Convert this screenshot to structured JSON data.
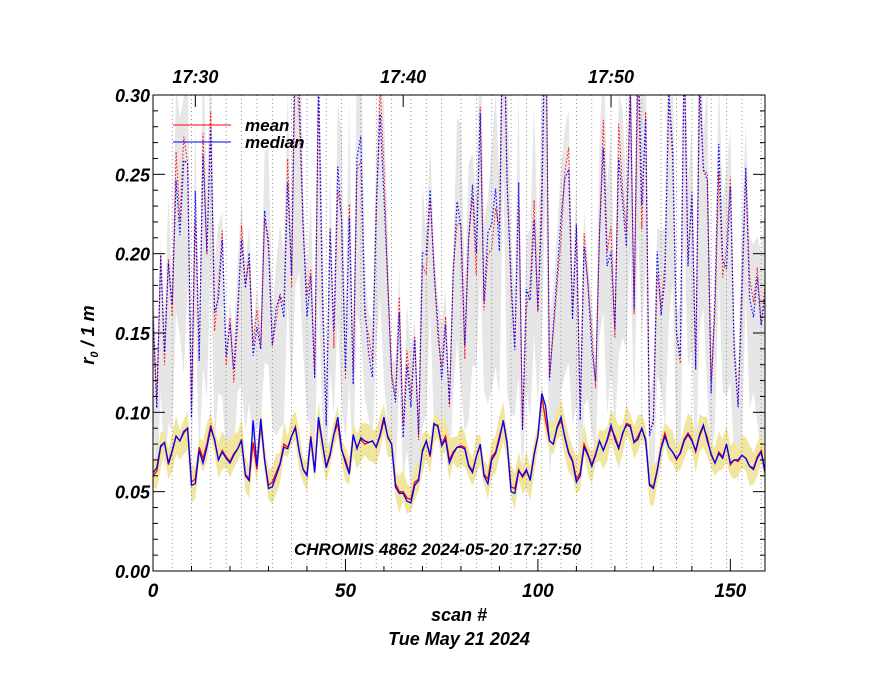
{
  "chart_data": {
    "type": "line",
    "title": "",
    "annotation": "CHROMIS 4862 2024-05-20 17:27:50",
    "xlabel": "scan #",
    "date_label": "Tue May 21 2024",
    "ylabel_main": "r",
    "ylabel_sub": "0",
    "ylabel_rest": " / 1 m",
    "xlim": [
      0,
      159
    ],
    "ylim": [
      0.0,
      0.3
    ],
    "x_ticks": [
      0,
      50,
      100,
      150
    ],
    "x_tick_labels": [
      "0",
      "50",
      "100",
      "150"
    ],
    "y_ticks": [
      0.0,
      0.05,
      0.1,
      0.15,
      0.2,
      0.25,
      0.3
    ],
    "y_tick_labels": [
      "0.00",
      "0.05",
      "0.10",
      "0.15",
      "0.20",
      "0.25",
      "0.30"
    ],
    "time_ticks": [
      {
        "x": 11,
        "label": "17:30"
      },
      {
        "x": 65,
        "label": "17:40"
      },
      {
        "x": 119,
        "label": "17:50"
      }
    ],
    "scan_markers": [
      5,
      10,
      15,
      19,
      23,
      27,
      31,
      36,
      40,
      45,
      49,
      54,
      58,
      62,
      67,
      71,
      75,
      80,
      84,
      88,
      93,
      97,
      101,
      106,
      110,
      114,
      119,
      123,
      127,
      132,
      136,
      140,
      145,
      149,
      153,
      158
    ],
    "legend": [
      {
        "label": "mean",
        "color": "#ff0000"
      },
      {
        "label": "median",
        "color": "#0000ff"
      }
    ],
    "colors": {
      "mean": "#ff0000",
      "median": "#0000ff",
      "band": "#f0e6a0",
      "top_band": "#e6e6e6"
    },
    "series": [
      {
        "name": "mean",
        "color": "#ff0000",
        "values": [
          0.06,
          0.063,
          0.078,
          0.081,
          0.067,
          0.075,
          0.085,
          0.082,
          0.087,
          0.09,
          0.056,
          0.058,
          0.078,
          0.071,
          0.08,
          0.092,
          0.082,
          0.07,
          0.076,
          0.072,
          0.069,
          0.074,
          0.077,
          0.083,
          0.061,
          0.058,
          0.081,
          0.064,
          0.093,
          0.07,
          0.054,
          0.056,
          0.062,
          0.068,
          0.08,
          0.078,
          0.085,
          0.091,
          0.075,
          0.064,
          0.061,
          0.085,
          0.063,
          0.095,
          0.08,
          0.066,
          0.074,
          0.086,
          0.093,
          0.076,
          0.07,
          0.062,
          0.085,
          0.078,
          0.083,
          0.08,
          0.081,
          0.082,
          0.078,
          0.085,
          0.095,
          0.085,
          0.08,
          0.055,
          0.05,
          0.05,
          0.046,
          0.045,
          0.056,
          0.058,
          0.075,
          0.082,
          0.072,
          0.092,
          0.092,
          0.08,
          0.085,
          0.07,
          0.075,
          0.078,
          0.079,
          0.078,
          0.067,
          0.063,
          0.072,
          0.079,
          0.061,
          0.058,
          0.072,
          0.075,
          0.085,
          0.094,
          0.08,
          0.053,
          0.052,
          0.064,
          0.059,
          0.063,
          0.058,
          0.074,
          0.085,
          0.11,
          0.095,
          0.082,
          0.08,
          0.09,
          0.095,
          0.085,
          0.075,
          0.07,
          0.058,
          0.062,
          0.08,
          0.074,
          0.067,
          0.074,
          0.082,
          0.076,
          0.082,
          0.09,
          0.085,
          0.078,
          0.086,
          0.093,
          0.092,
          0.081,
          0.085,
          0.09,
          0.083,
          0.055,
          0.053,
          0.064,
          0.078,
          0.087,
          0.078,
          0.075,
          0.07,
          0.075,
          0.083,
          0.087,
          0.083,
          0.075,
          0.085,
          0.091,
          0.084,
          0.073,
          0.068,
          0.075,
          0.072,
          0.08,
          0.067,
          0.07,
          0.069,
          0.073,
          0.071,
          0.066,
          0.065,
          0.072,
          0.076,
          0.063
        ]
      },
      {
        "name": "median",
        "color": "#0000ff",
        "values": [
          0.062,
          0.065,
          0.079,
          0.081,
          0.068,
          0.076,
          0.085,
          0.082,
          0.088,
          0.09,
          0.054,
          0.055,
          0.076,
          0.068,
          0.078,
          0.09,
          0.083,
          0.07,
          0.075,
          0.071,
          0.068,
          0.073,
          0.077,
          0.082,
          0.06,
          0.057,
          0.095,
          0.066,
          0.096,
          0.07,
          0.052,
          0.053,
          0.06,
          0.067,
          0.078,
          0.077,
          0.085,
          0.09,
          0.075,
          0.064,
          0.06,
          0.084,
          0.062,
          0.097,
          0.081,
          0.065,
          0.073,
          0.086,
          0.097,
          0.077,
          0.068,
          0.061,
          0.086,
          0.077,
          0.084,
          0.082,
          0.081,
          0.082,
          0.078,
          0.086,
          0.097,
          0.084,
          0.08,
          0.053,
          0.049,
          0.049,
          0.044,
          0.043,
          0.054,
          0.057,
          0.076,
          0.082,
          0.073,
          0.093,
          0.091,
          0.079,
          0.083,
          0.068,
          0.074,
          0.078,
          0.078,
          0.077,
          0.066,
          0.062,
          0.072,
          0.08,
          0.06,
          0.055,
          0.07,
          0.074,
          0.083,
          0.095,
          0.081,
          0.05,
          0.049,
          0.063,
          0.06,
          0.064,
          0.057,
          0.073,
          0.085,
          0.112,
          0.104,
          0.082,
          0.08,
          0.091,
          0.097,
          0.084,
          0.074,
          0.069,
          0.056,
          0.06,
          0.078,
          0.073,
          0.066,
          0.073,
          0.082,
          0.076,
          0.083,
          0.092,
          0.083,
          0.077,
          0.087,
          0.092,
          0.091,
          0.081,
          0.083,
          0.09,
          0.082,
          0.054,
          0.052,
          0.063,
          0.077,
          0.085,
          0.078,
          0.075,
          0.071,
          0.074,
          0.082,
          0.086,
          0.082,
          0.076,
          0.086,
          0.092,
          0.082,
          0.074,
          0.068,
          0.074,
          0.071,
          0.08,
          0.068,
          0.07,
          0.07,
          0.073,
          0.071,
          0.066,
          0.064,
          0.071,
          0.075,
          0.062
        ]
      }
    ]
  }
}
